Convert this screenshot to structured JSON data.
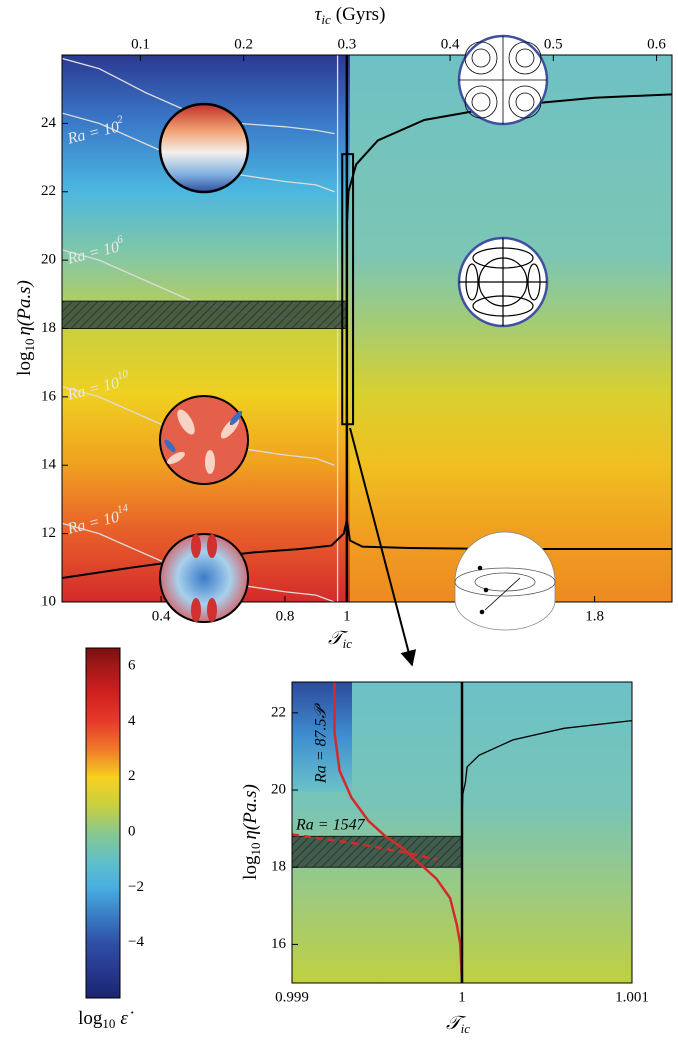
{
  "chart_data": [
    {
      "type": "line",
      "xlabel": {
        "symbol": "𝒯",
        "sub": "ic"
      },
      "x2label": {
        "symbol": "τ",
        "sub": "ic",
        "unit": "(Gyrs)"
      },
      "ylabel": {
        "fn": "log",
        "base": "10",
        "rest": "η(Pa.s)"
      },
      "xlim": [
        0.08,
        2.05
      ],
      "xticks": [
        0.4,
        0.8,
        1,
        1.8
      ],
      "x2lim": [
        0.024,
        0.615
      ],
      "x2ticks": [
        0.1,
        0.2,
        0.3,
        0.4,
        0.5,
        0.6
      ],
      "ylim": [
        10,
        26
      ],
      "yticks": [
        10,
        12,
        14,
        16,
        18,
        20,
        22,
        24
      ],
      "annotations": [
        {
          "text": "Ra = 10",
          "sup": "2"
        },
        {
          "text": "Ra = 10",
          "sup": "6"
        },
        {
          "text": "Ra = 10",
          "sup": "10"
        },
        {
          "text": "Ra = 10",
          "sup": "14"
        }
      ],
      "contours": [
        {
          "color": "#dcdcdc",
          "x": [
            0.08,
            0.2,
            0.35,
            0.5,
            0.65,
            0.8,
            0.9,
            0.96
          ],
          "y": [
            25.9,
            25.6,
            24.9,
            24.3,
            24.0,
            23.9,
            23.8,
            23.7
          ]
        },
        {
          "color": "#dcdcdc",
          "x": [
            0.08,
            0.2,
            0.35,
            0.5,
            0.65,
            0.8,
            0.9,
            0.96
          ],
          "y": [
            24.3,
            24.0,
            23.4,
            22.8,
            22.5,
            22.3,
            22.2,
            22.0
          ]
        },
        {
          "color": "#dcdcdc",
          "x": [
            0.08,
            0.2,
            0.35,
            0.5,
            0.65,
            0.8,
            0.9,
            0.96
          ],
          "y": [
            20.3,
            20.0,
            19.4,
            18.8,
            18.5,
            18.3,
            18.2,
            18.0
          ]
        },
        {
          "color": "#dcdcdc",
          "x": [
            0.08,
            0.2,
            0.35,
            0.5,
            0.65,
            0.8,
            0.9,
            0.96
          ],
          "y": [
            16.3,
            16.0,
            15.4,
            14.8,
            14.5,
            14.3,
            14.2,
            14.0
          ]
        },
        {
          "color": "#dcdcdc",
          "x": [
            0.08,
            0.2,
            0.35,
            0.5,
            0.65,
            0.8,
            0.9,
            0.96
          ],
          "y": [
            12.3,
            12.0,
            11.4,
            10.8,
            10.5,
            10.3,
            10.2,
            10.0
          ]
        },
        {
          "color": "#dcdcdc",
          "x": [
            0.97,
            0.97
          ],
          "y": [
            26,
            10
          ]
        }
      ],
      "lines": [
        {
          "color": "#000000",
          "width": 2,
          "x": [
            0.08,
            0.3,
            0.5,
            0.7,
            0.85,
            0.95,
            0.99,
            1.0
          ],
          "y": [
            10.7,
            11.0,
            11.25,
            11.45,
            11.55,
            11.65,
            12.0,
            12.4
          ]
        },
        {
          "color": "#000000",
          "width": 2,
          "x": [
            1.0,
            1.01,
            1.05,
            1.2,
            1.5,
            1.8,
            2.05
          ],
          "y": [
            12.4,
            11.8,
            11.62,
            11.58,
            11.55,
            11.55,
            11.55
          ]
        },
        {
          "color": "#000000",
          "width": 2,
          "x": [
            1.0,
            1.005,
            1.03,
            1.1,
            1.25,
            1.5,
            1.8,
            2.05
          ],
          "y": [
            21.0,
            22.0,
            22.8,
            23.5,
            24.1,
            24.5,
            24.75,
            24.85
          ]
        },
        {
          "color": "#000000",
          "width": 2.5,
          "x": [
            1,
            1
          ],
          "y": [
            10,
            26
          ]
        }
      ],
      "hatch_band": {
        "ymin": 18,
        "ymax": 18.8,
        "xmax": 1
      },
      "zoom_box": {
        "xmin": 0.985,
        "xmax": 1.02,
        "ymin": 15.2,
        "ymax": 23.1
      }
    },
    {
      "type": "colorbar",
      "label": {
        "fn": "log",
        "base": "10",
        "symbol": "ε̇"
      },
      "clim": [
        -6,
        6.65
      ],
      "ticks": [
        6,
        4,
        2,
        0,
        {
          "value": -2,
          "label": "−2"
        },
        {
          "value": -4,
          "label": "−4"
        }
      ]
    },
    {
      "type": "line",
      "xlabel": {
        "symbol": "𝒯",
        "sub": "ic"
      },
      "ylabel": {
        "fn": "log",
        "base": "10",
        "rest": "η(Pa.s)"
      },
      "xlim": [
        0.999,
        1.001
      ],
      "xticks": [
        0.999,
        1,
        1.001
      ],
      "ylim": [
        15,
        22.8
      ],
      "yticks": [
        16,
        18,
        20,
        22
      ],
      "annotations": [
        {
          "text": "Ra = 87.5𝒫"
        },
        {
          "text": "Ra = 1547"
        }
      ],
      "lines": [
        {
          "color": "#d42a2a",
          "width": 2.5,
          "x": [
            0.99925,
            0.99925,
            0.99928,
            0.99935,
            0.99945,
            0.99955,
            0.99965,
            0.99975,
            0.99985,
            0.99993,
            0.99997,
            0.99999,
            1.0
          ],
          "y": [
            22.8,
            21.5,
            20.5,
            19.8,
            19.2,
            18.8,
            18.5,
            18.1,
            17.7,
            17.2,
            16.5,
            16.0,
            15.0
          ]
        },
        {
          "color": "#d42a2a",
          "width": 2.5,
          "dash": true,
          "x": [
            0.999,
            0.9994,
            0.9997,
            0.99985
          ],
          "y": [
            18.85,
            18.6,
            18.35,
            18.2
          ]
        },
        {
          "color": "#000000",
          "width": 1.3,
          "x": [
            1.0,
            1.000005,
            1.00002,
            1.00003,
            1.0001,
            1.0003,
            1.0006,
            1.001
          ],
          "y": [
            19.3,
            19.9,
            20.2,
            20.6,
            20.9,
            21.3,
            21.6,
            21.8
          ]
        },
        {
          "color": "#000000",
          "width": 2.5,
          "x": [
            1,
            1
          ],
          "y": [
            15,
            22.8
          ]
        }
      ],
      "hatch_band": {
        "ymin": 18,
        "ymax": 18.8,
        "xmax": 1
      }
    }
  ]
}
